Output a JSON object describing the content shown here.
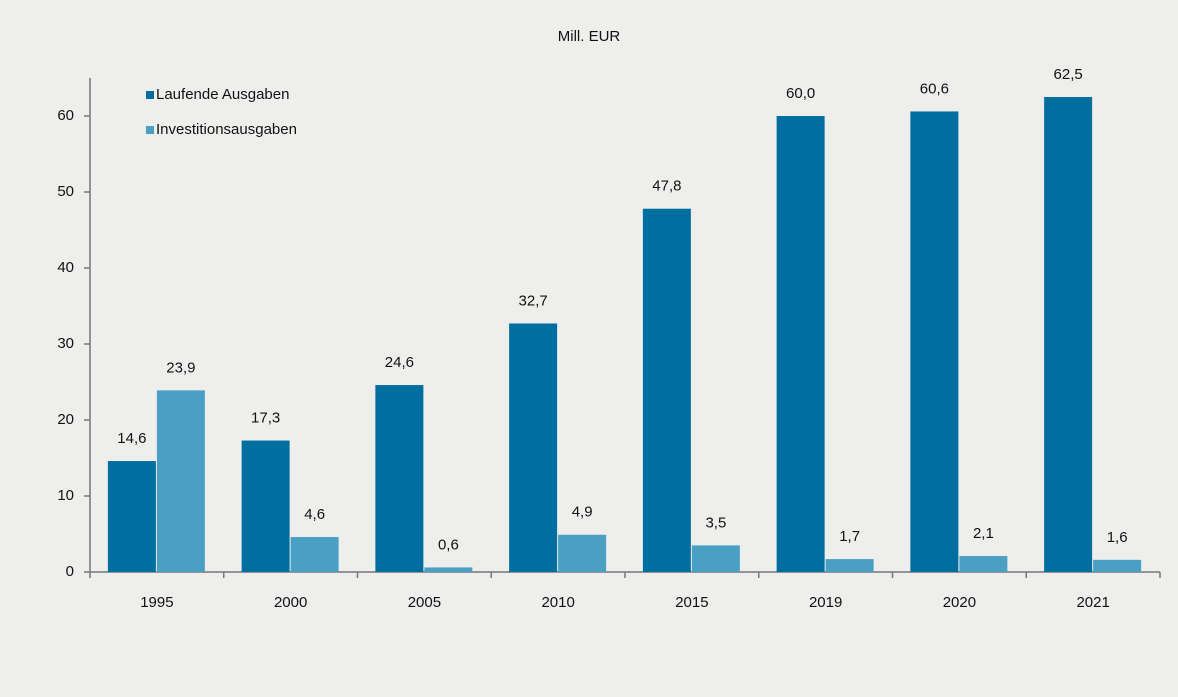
{
  "chart_data": {
    "type": "bar",
    "title": "Mill. EUR",
    "categories": [
      "1995",
      "2000",
      "2005",
      "2010",
      "2015",
      "2019",
      "2020",
      "2021"
    ],
    "series": [
      {
        "name": "Laufende Ausgaben",
        "color": "#006f9f",
        "values": [
          14.6,
          17.3,
          24.6,
          32.7,
          47.8,
          60.0,
          60.6,
          62.5
        ],
        "value_labels": [
          "14,6",
          "17,3",
          "24,6",
          "32,7",
          "47,8",
          "60,0",
          "60,6",
          "62,5"
        ]
      },
      {
        "name": "Investitionsausgaben",
        "color": "#4aa0c4",
        "values": [
          23.9,
          4.6,
          0.6,
          4.9,
          3.5,
          1.7,
          2.1,
          1.6
        ],
        "value_labels": [
          "23,9",
          "4,6",
          "0,6",
          "4,9",
          "3,5",
          "1,7",
          "2,1",
          "1,6"
        ]
      }
    ],
    "ylim": [
      0,
      65
    ],
    "yticks": [
      0,
      10,
      20,
      30,
      40,
      50,
      60
    ],
    "grid": false,
    "legend": "top-left"
  }
}
